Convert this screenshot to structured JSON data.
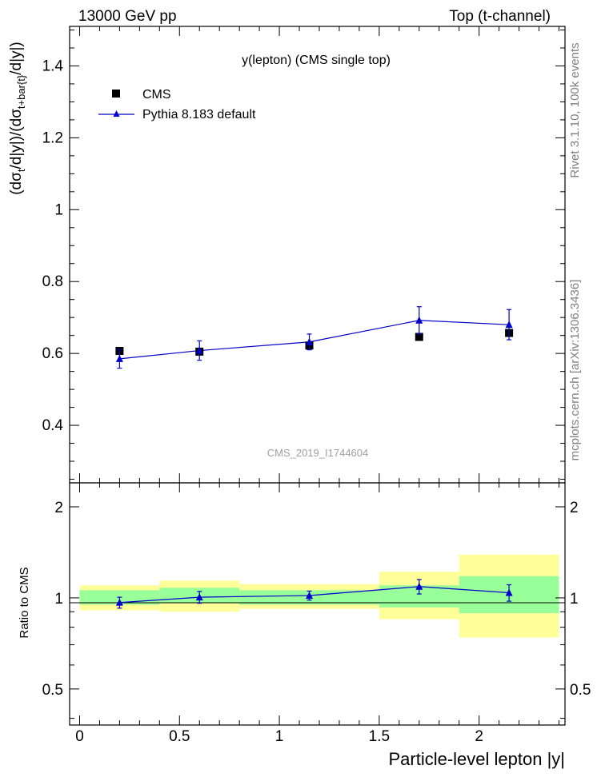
{
  "header": {
    "left": "13000 GeV pp",
    "right": "Top (t-channel)"
  },
  "side_labels": {
    "rivet": "Rivet 3.1.10,  100k events",
    "mcplots": "mcplots.cern.ch [arXiv:1306.3436]"
  },
  "chart_data": [
    {
      "type": "scatter",
      "panel": "main",
      "title": "y(lepton) (CMS single top)",
      "watermark": "CMS_2019_I1744604",
      "ylabel": "(dσt/d|y|)/(dσt+bar{t}/d|y|)",
      "xlabel": "",
      "xlim": [
        -0.05,
        2.43
      ],
      "ylim": [
        0.24,
        1.51
      ],
      "yticks": [
        0.4,
        0.6,
        0.8,
        1,
        1.2,
        1.4
      ],
      "ytick_labels": [
        "0.4",
        "0.6",
        "0.8",
        "1",
        "1.2",
        "1.4"
      ],
      "legend_position": "top-left",
      "series": [
        {
          "name": "CMS",
          "marker": "square",
          "color": "#000000",
          "x": [
            0.2,
            0.6,
            1.15,
            1.7,
            2.15
          ],
          "y": [
            0.607,
            0.605,
            0.622,
            0.646,
            0.657
          ],
          "yerr": [
            0.008,
            0.008,
            0.008,
            0.008,
            0.008
          ]
        },
        {
          "name": "Pythia 8.183 default",
          "marker": "triangle",
          "color": "#0000cc",
          "x": [
            0.2,
            0.6,
            1.15,
            1.7,
            2.15
          ],
          "y": [
            0.585,
            0.608,
            0.632,
            0.692,
            0.68
          ],
          "yerr": [
            0.026,
            0.027,
            0.022,
            0.038,
            0.042
          ]
        }
      ]
    },
    {
      "type": "scatter",
      "panel": "ratio",
      "xlabel": "Particle-level lepton |y|",
      "ylabel": "Ratio to CMS",
      "xlim": [
        -0.05,
        2.43
      ],
      "ylim": [
        0.38,
        2.4
      ],
      "log_y": true,
      "yticks": [
        0.5,
        1,
        2
      ],
      "ytick_labels": [
        "0.5",
        "1",
        "2"
      ],
      "xticks": [
        0,
        0.5,
        1,
        1.5,
        2
      ],
      "xtick_labels": [
        "0",
        "0.5",
        "1",
        "1.5",
        "2"
      ],
      "bands": {
        "bin_edges": [
          0,
          0.4,
          0.8,
          1.5,
          1.9,
          2.4
        ],
        "inner_low": [
          0.95,
          0.96,
          0.95,
          0.93,
          0.89
        ],
        "inner_high": [
          1.06,
          1.08,
          1.06,
          1.1,
          1.18
        ],
        "outer_low": [
          0.91,
          0.9,
          0.92,
          0.85,
          0.74
        ],
        "outer_high": [
          1.1,
          1.14,
          1.11,
          1.22,
          1.39
        ],
        "inner_color": "#99ff99",
        "outer_color": "#ffff99"
      },
      "series": [
        {
          "name": "Pythia 8.183 default",
          "marker": "triangle",
          "color": "#0000cc",
          "x": [
            0.2,
            0.6,
            1.15,
            1.7,
            2.15
          ],
          "y": [
            0.965,
            1.005,
            1.018,
            1.09,
            1.04
          ],
          "yerr": [
            0.04,
            0.045,
            0.035,
            0.06,
            0.065
          ]
        }
      ]
    }
  ]
}
